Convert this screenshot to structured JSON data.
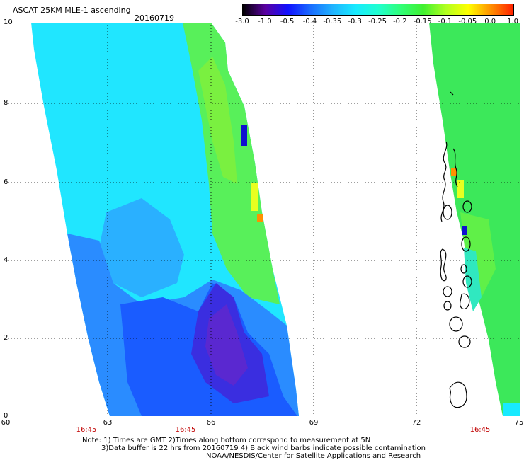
{
  "header": {
    "title": "ASCAT 25KM MLE-1 ascending",
    "date": "20160719"
  },
  "colorbar": {
    "labels": [
      "-3.0",
      "-1.0",
      "-0.5",
      "-0.4",
      "-0.35",
      "-0.3",
      "-0.25",
      "-0.2",
      "-0.15",
      "-0.1",
      "-0.05",
      "0.0",
      "1.0"
    ],
    "colors": [
      "#000000",
      "#5a00a0",
      "#1010ff",
      "#1a6cff",
      "#20b4ff",
      "#18eaff",
      "#20ffd0",
      "#30ff78",
      "#40f030",
      "#b0ff20",
      "#ffff00",
      "#ff9000",
      "#ff2000"
    ]
  },
  "axes": {
    "y_labels": [
      "10",
      "8",
      "6",
      "4",
      "2",
      "0"
    ],
    "x_labels": [
      "60",
      "63",
      "66",
      "69",
      "72",
      "75"
    ],
    "times": [
      "16:45",
      "16:45",
      "16:45"
    ]
  },
  "notes": {
    "line1": "Note: 1) Times are GMT 2)Times along bottom correspond to measurement at 5N",
    "line2": "3)Data buffer is 22 hrs from 20160719 4) Black wind barbs indicate possible contamination",
    "line3": "NOAA/NESDIS/Center for Satellite Applications and Research"
  }
}
